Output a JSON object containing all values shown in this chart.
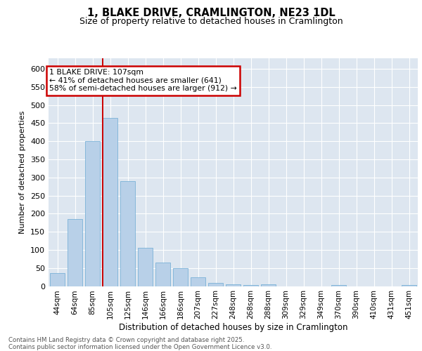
{
  "title_line1": "1, BLAKE DRIVE, CRAMLINGTON, NE23 1DL",
  "title_line2": "Size of property relative to detached houses in Cramlington",
  "xlabel": "Distribution of detached houses by size in Cramlington",
  "ylabel": "Number of detached properties",
  "categories": [
    "44sqm",
    "64sqm",
    "85sqm",
    "105sqm",
    "125sqm",
    "146sqm",
    "166sqm",
    "186sqm",
    "207sqm",
    "227sqm",
    "248sqm",
    "268sqm",
    "288sqm",
    "309sqm",
    "329sqm",
    "349sqm",
    "370sqm",
    "390sqm",
    "410sqm",
    "431sqm",
    "451sqm"
  ],
  "values": [
    35,
    185,
    400,
    465,
    290,
    105,
    65,
    50,
    25,
    8,
    5,
    2,
    5,
    0,
    0,
    0,
    3,
    0,
    0,
    0,
    3
  ],
  "bar_color": "#b8d0e8",
  "bar_edge_color": "#6aaad4",
  "vline_color": "#cc0000",
  "vline_index": 3,
  "annotation_text": "1 BLAKE DRIVE: 107sqm\n← 41% of detached houses are smaller (641)\n58% of semi-detached houses are larger (912) →",
  "ylim_max": 630,
  "yticks": [
    0,
    50,
    100,
    150,
    200,
    250,
    300,
    350,
    400,
    450,
    500,
    550,
    600
  ],
  "bg_color": "#dde6f0",
  "grid_color": "#ffffff",
  "footer": "Contains HM Land Registry data © Crown copyright and database right 2025.\nContains public sector information licensed under the Open Government Licence v3.0."
}
